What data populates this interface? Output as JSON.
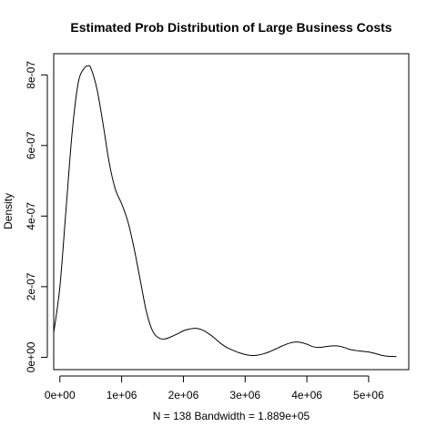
{
  "chart_data": {
    "type": "line",
    "title": "Estimated Prob Distribution of Large Business Costs",
    "xlabel": "N = 138   Bandwidth = 1.889e+05",
    "ylabel": "Density",
    "xlim": [
      -100000,
      5650000
    ],
    "ylim": [
      -3.5e-08,
      8.6e-07
    ],
    "x_ticks": [
      {
        "value": 0,
        "label": "0e+00"
      },
      {
        "value": 1000000,
        "label": "1e+06"
      },
      {
        "value": 2000000,
        "label": "2e+06"
      },
      {
        "value": 3000000,
        "label": "3e+06"
      },
      {
        "value": 4000000,
        "label": "4e+06"
      },
      {
        "value": 5000000,
        "label": "5e+06"
      }
    ],
    "y_ticks": [
      {
        "value": 0,
        "label": "0e+00"
      },
      {
        "value": 2e-07,
        "label": "2e-07"
      },
      {
        "value": 4e-07,
        "label": "4e-07"
      },
      {
        "value": 6e-07,
        "label": "6e-07"
      },
      {
        "value": 8e-07,
        "label": "8e-07"
      }
    ],
    "grid": false,
    "series": [
      {
        "x": [
          -100000,
          0,
          100000,
          200000,
          300000,
          400000,
          450000,
          500000,
          600000,
          700000,
          800000,
          900000,
          1000000,
          1100000,
          1200000,
          1300000,
          1400000,
          1500000,
          1600000,
          1700000,
          1800000,
          1900000,
          2000000,
          2100000,
          2200000,
          2300000,
          2400000,
          2500000,
          2600000,
          2700000,
          2800000,
          2900000,
          3000000,
          3100000,
          3200000,
          3300000,
          3400000,
          3500000,
          3600000,
          3700000,
          3800000,
          3900000,
          4000000,
          4100000,
          4200000,
          4300000,
          4400000,
          4500000,
          4600000,
          4700000,
          4800000,
          4900000,
          5000000,
          5100000,
          5200000,
          5300000,
          5450000
        ],
        "y": [
          7e-08,
          2e-07,
          4.2e-07,
          6.4e-07,
          7.8e-07,
          8.2e-07,
          8.25e-07,
          8.2e-07,
          7.6e-07,
          6.6e-07,
          5.5e-07,
          4.75e-07,
          4.35e-07,
          3.85e-07,
          3.1e-07,
          2.2e-07,
          1.3e-07,
          7.5e-08,
          5.5e-08,
          5.2e-08,
          5.8e-08,
          6.6e-08,
          7.5e-08,
          8e-08,
          8.2e-08,
          7.8e-08,
          6.8e-08,
          5.5e-08,
          4e-08,
          2.8e-08,
          2e-08,
          1.3e-08,
          8e-09,
          5e-09,
          6e-09,
          1e-08,
          1.6e-08,
          2.4e-08,
          3.2e-08,
          3.9e-08,
          4.3e-08,
          4.2e-08,
          3.7e-08,
          3e-08,
          2.8e-08,
          3e-08,
          3.2e-08,
          3.2e-08,
          2.8e-08,
          2.2e-08,
          1.9e-08,
          1.7e-08,
          1.5e-08,
          1.1e-08,
          6e-09,
          3e-09,
          2e-09
        ]
      }
    ]
  }
}
